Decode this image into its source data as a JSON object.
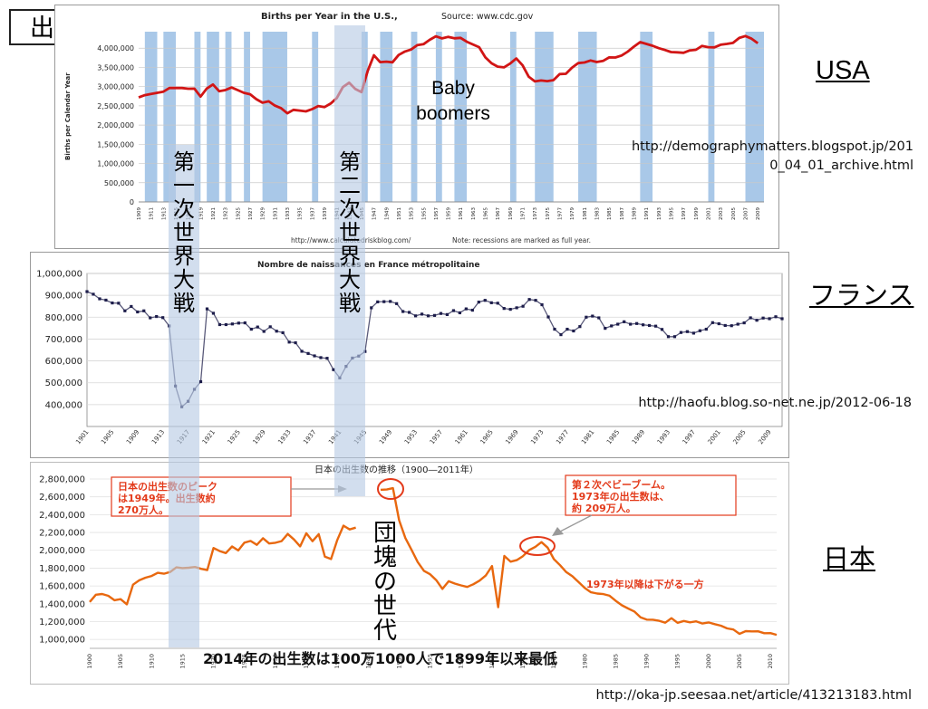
{
  "page": {
    "title": "出生数の推移",
    "wars": {
      "ww1": [
        "第",
        "一",
        "次",
        "世",
        "界",
        "大",
        "戦"
      ],
      "ww2": [
        "第",
        "二",
        "次",
        "世",
        "界",
        "大",
        "戦"
      ]
    },
    "countries": {
      "usa": "USA",
      "france": "フランス",
      "japan": "日本"
    },
    "sources": {
      "usa_line1": "http://demographymatters.blogspot.jp/201",
      "usa_line2": "0_04_01_archive.html",
      "france": "http://haofu.blog.so-net.ne.jp/2012-06-18",
      "japan": "http://oka-jp.seesaa.net/article/413213183.html"
    },
    "colors": {
      "usa_line": "#d11515",
      "france_line": "#1c1c4a",
      "japan_line": "#e8680f",
      "recession": "#a9c8e8",
      "annotation": "#e33a1a",
      "highlight": "#b6c9e4"
    }
  },
  "chart_data": [
    {
      "type": "line",
      "title": "Births per Year in the U.S.,",
      "subtitle": "Source: www.cdc.gov",
      "ylabel": "Births per Calendar Year",
      "footer_left": "http://www.calculatedriskblog.com/",
      "footer_right": "Note: recessions are marked as full year.",
      "ylim": [
        0,
        4500000
      ],
      "yticks": [
        0,
        500000,
        1000000,
        1500000,
        2000000,
        2500000,
        3000000,
        3500000,
        4000000
      ],
      "ytick_labels": [
        "0",
        "500,000",
        "1,000,000",
        "1,500,000",
        "2,000,000",
        "2,500,000",
        "3,000,000",
        "3,500,000",
        "4,000,000"
      ],
      "xlim": [
        1909,
        2010
      ],
      "xtick_labels": [
        "1909",
        "1911",
        "1913",
        "1915",
        "1917",
        "1919",
        "1921",
        "1923",
        "1925",
        "1927",
        "1929",
        "1931",
        "1933",
        "1935",
        "1937",
        "1939",
        "1941",
        "1943",
        "1945",
        "1947",
        "1949",
        "1951",
        "1953",
        "1955",
        "1957",
        "1959",
        "1961",
        "1963",
        "1965",
        "1967",
        "1969",
        "1971",
        "1973",
        "1975",
        "1977",
        "1979",
        "1981",
        "1983",
        "1985",
        "1987",
        "1989",
        "1991",
        "1993",
        "1995",
        "1997",
        "1999",
        "2001",
        "2003",
        "2005",
        "2007",
        "2009"
      ],
      "recessions": [
        [
          1910,
          1912
        ],
        [
          1913,
          1915
        ],
        [
          1918,
          1919
        ],
        [
          1920,
          1922
        ],
        [
          1923,
          1924
        ],
        [
          1926,
          1927
        ],
        [
          1929,
          1933
        ],
        [
          1937,
          1938
        ],
        [
          1945,
          1946
        ],
        [
          1948,
          1950
        ],
        [
          1953,
          1954
        ],
        [
          1957,
          1958
        ],
        [
          1960,
          1962
        ],
        [
          1969,
          1970
        ],
        [
          1973,
          1976
        ],
        [
          1980,
          1983
        ],
        [
          1990,
          1992
        ],
        [
          2001,
          2002
        ],
        [
          2007,
          2010
        ]
      ],
      "annotation": [
        "Baby",
        "boomers"
      ],
      "series": [
        {
          "name": "Births",
          "x": [
            1909,
            1910,
            1911,
            1912,
            1913,
            1914,
            1915,
            1916,
            1917,
            1918,
            1919,
            1920,
            1921,
            1922,
            1923,
            1924,
            1925,
            1926,
            1927,
            1928,
            1929,
            1930,
            1931,
            1932,
            1933,
            1934,
            1935,
            1936,
            1937,
            1938,
            1939,
            1940,
            1941,
            1942,
            1943,
            1944,
            1945,
            1946,
            1947,
            1948,
            1949,
            1950,
            1951,
            1952,
            1953,
            1954,
            1955,
            1956,
            1957,
            1958,
            1959,
            1960,
            1961,
            1962,
            1963,
            1964,
            1965,
            1966,
            1967,
            1968,
            1969,
            1970,
            1971,
            1972,
            1973,
            1974,
            1975,
            1976,
            1977,
            1978,
            1979,
            1980,
            1981,
            1982,
            1983,
            1984,
            1985,
            1986,
            1987,
            1988,
            1989,
            1990,
            1991,
            1992,
            1993,
            1994,
            1995,
            1996,
            1997,
            1998,
            1999,
            2000,
            2001,
            2002,
            2003,
            2004,
            2005,
            2006,
            2007,
            2008,
            2009
          ],
          "values": [
            2718000,
            2777000,
            2809000,
            2840000,
            2869000,
            2966000,
            2965000,
            2964000,
            2944000,
            2948000,
            2740000,
            2950000,
            3055000,
            2882000,
            2910000,
            2979000,
            2909000,
            2839000,
            2802000,
            2674000,
            2582000,
            2618000,
            2506000,
            2440000,
            2307000,
            2396000,
            2377000,
            2355000,
            2413000,
            2496000,
            2466000,
            2559000,
            2703000,
            2989000,
            3104000,
            2939000,
            2858000,
            3411000,
            3817000,
            3637000,
            3649000,
            3632000,
            3823000,
            3913000,
            3965000,
            4078000,
            4104000,
            4218000,
            4308000,
            4255000,
            4295000,
            4258000,
            4268000,
            4167000,
            4098000,
            4027000,
            3760000,
            3606000,
            3521000,
            3502000,
            3600000,
            3731000,
            3556000,
            3258000,
            3137000,
            3160000,
            3144000,
            3168000,
            3327000,
            3333000,
            3494000,
            3612000,
            3629000,
            3681000,
            3639000,
            3669000,
            3761000,
            3757000,
            3809000,
            3910000,
            4041000,
            4158000,
            4111000,
            4065000,
            4000000,
            3953000,
            3900000,
            3891000,
            3881000,
            3942000,
            3959000,
            4059000,
            4026000,
            4022000,
            4090000,
            4112000,
            4138000,
            4266000,
            4316000,
            4248000,
            4131000
          ]
        }
      ]
    },
    {
      "type": "line",
      "title": "Nombre de naissances en France métropolitaine",
      "ylim": [
        300000,
        1000000
      ],
      "yticks": [
        400000,
        500000,
        600000,
        700000,
        800000,
        900000,
        1000000
      ],
      "ytick_labels": [
        "400,000",
        "500,000",
        "600,000",
        "700,000",
        "800,000",
        "900,000",
        "1,000,000"
      ],
      "xlim": [
        1901,
        2011
      ],
      "xtick_labels": [
        "1901",
        "1905",
        "1909",
        "1913",
        "1917",
        "1921",
        "1925",
        "1929",
        "1933",
        "1937",
        "1941",
        "1945",
        "1949",
        "1953",
        "1957",
        "1961",
        "1965",
        "1969",
        "1973",
        "1977",
        "1981",
        "1985",
        "1989",
        "1993",
        "1997",
        "2001",
        "2005",
        "2009"
      ],
      "series": [
        {
          "name": "Naissances",
          "x": [
            1901,
            1902,
            1903,
            1904,
            1905,
            1906,
            1907,
            1908,
            1909,
            1910,
            1911,
            1912,
            1913,
            1914,
            1915,
            1916,
            1917,
            1918,
            1919,
            1920,
            1921,
            1922,
            1923,
            1924,
            1925,
            1926,
            1927,
            1928,
            1929,
            1930,
            1931,
            1932,
            1933,
            1934,
            1935,
            1936,
            1937,
            1938,
            1939,
            1940,
            1941,
            1942,
            1943,
            1944,
            1945,
            1946,
            1947,
            1948,
            1949,
            1950,
            1951,
            1952,
            1953,
            1954,
            1955,
            1956,
            1957,
            1958,
            1959,
            1960,
            1961,
            1962,
            1963,
            1964,
            1965,
            1966,
            1967,
            1968,
            1969,
            1970,
            1971,
            1972,
            1973,
            1974,
            1975,
            1976,
            1977,
            1978,
            1979,
            1980,
            1981,
            1982,
            1983,
            1984,
            1985,
            1986,
            1987,
            1988,
            1989,
            1990,
            1991,
            1992,
            1993,
            1994,
            1995,
            1996,
            1997,
            1998,
            1999,
            2000,
            2001,
            2002,
            2003,
            2004,
            2005,
            2006,
            2007,
            2008,
            2009,
            2010,
            2011
          ],
          "values": [
            917000,
            905000,
            884000,
            878000,
            865000,
            864000,
            829000,
            849000,
            824000,
            829000,
            797000,
            803000,
            798000,
            760000,
            485000,
            390000,
            415000,
            470000,
            505000,
            838000,
            818000,
            766000,
            766000,
            769000,
            773000,
            774000,
            745000,
            755000,
            735000,
            756000,
            736000,
            729000,
            686000,
            683000,
            644000,
            634000,
            623000,
            615000,
            612000,
            560000,
            522000,
            575000,
            613000,
            622000,
            643000,
            843000,
            870000,
            871000,
            872000,
            862000,
            826000,
            822000,
            806000,
            814000,
            806000,
            808000,
            817000,
            812000,
            830000,
            820000,
            838000,
            832000,
            869000,
            877000,
            866000,
            864000,
            840000,
            836000,
            843000,
            850000,
            881000,
            877000,
            857000,
            801000,
            745000,
            720000,
            745000,
            737000,
            757000,
            800000,
            805000,
            797000,
            749000,
            760000,
            768000,
            779000,
            768000,
            771000,
            765000,
            762000,
            759000,
            744000,
            711000,
            711000,
            730000,
            734000,
            727000,
            738000,
            745000,
            775000,
            770000,
            762000,
            761000,
            768000,
            774000,
            797000,
            786000,
            796000,
            793000,
            802000,
            793000
          ]
        }
      ]
    },
    {
      "type": "line",
      "title": "日本の出生数の推移（1900―2011年）",
      "ylim": [
        900000,
        2800000
      ],
      "yticks": [
        1000000,
        1200000,
        1400000,
        1600000,
        1800000,
        2000000,
        2200000,
        2400000,
        2600000,
        2800000
      ],
      "ytick_labels": [
        "1,000,000",
        "1,200,000",
        "1,400,000",
        "1,600,000",
        "1,800,000",
        "2,000,000",
        "2,200,000",
        "2,400,000",
        "2,600,000",
        "2,800,000"
      ],
      "xlim": [
        1900,
        2011
      ],
      "xtick_labels": [
        "1900",
        "1905",
        "1910",
        "1915",
        "1920",
        "1925",
        "1930",
        "1935",
        "1940",
        "1945",
        "1950",
        "1955",
        "1960",
        "1965",
        "1970",
        "1975",
        "1980",
        "1985",
        "1990",
        "1995",
        "2000",
        "2005",
        "2010"
      ],
      "note_peak": [
        "日本の出生数のピーク",
        "は1949年。出生数約",
        "270万人。"
      ],
      "note_second": [
        "第２次ベビーブーム。",
        "1973年の出生数は、",
        "約 209万人。"
      ],
      "note_decline": "1973年以降は下がる一方",
      "dankai": [
        "団",
        "塊",
        "の",
        "世",
        "代"
      ],
      "bottom_caption": "2014年の出生数は100万1000人で1899年以来最低",
      "series": [
        {
          "name": "出生数",
          "x": [
            1900,
            1901,
            1902,
            1903,
            1904,
            1905,
            1906,
            1907,
            1908,
            1909,
            1910,
            1911,
            1912,
            1913,
            1914,
            1915,
            1916,
            1917,
            1918,
            1919,
            1920,
            1921,
            1922,
            1923,
            1924,
            1925,
            1926,
            1927,
            1928,
            1929,
            1930,
            1931,
            1932,
            1933,
            1934,
            1935,
            1936,
            1937,
            1938,
            1939,
            1940,
            1941,
            1942,
            1943,
            null,
            1947,
            1948,
            1949,
            1950,
            1951,
            1952,
            1953,
            1954,
            1955,
            1956,
            1957,
            1958,
            1959,
            1960,
            1961,
            1962,
            1963,
            1964,
            1965,
            1966,
            1967,
            1968,
            1969,
            1970,
            1971,
            1972,
            1973,
            1974,
            1975,
            1976,
            1977,
            1978,
            1979,
            1980,
            1981,
            1982,
            1983,
            1984,
            1985,
            1986,
            1987,
            1988,
            1989,
            1990,
            1991,
            1992,
            1993,
            1994,
            1995,
            1996,
            1997,
            1998,
            1999,
            2000,
            2001,
            2002,
            2003,
            2004,
            2005,
            2006,
            2007,
            2008,
            2009,
            2010,
            2011
          ],
          "values": [
            1420000,
            1501000,
            1510000,
            1489000,
            1440000,
            1452000,
            1394000,
            1614000,
            1663000,
            1693000,
            1712000,
            1747000,
            1737000,
            1757000,
            1808000,
            1800000,
            1804000,
            1812000,
            1792000,
            1778000,
            2026000,
            1991000,
            1969000,
            2043000,
            1998000,
            2086000,
            2105000,
            2061000,
            2136000,
            2077000,
            2085000,
            2103000,
            2183000,
            2121000,
            2044000,
            2191000,
            2102000,
            2181000,
            1928000,
            1902000,
            2116000,
            2277000,
            2234000,
            2254000,
            null,
            2679000,
            2682000,
            2697000,
            2338000,
            2138000,
            2005000,
            1868000,
            1770000,
            1731000,
            1665000,
            1567000,
            1653000,
            1626000,
            1606000,
            1589000,
            1619000,
            1660000,
            1717000,
            1824000,
            1361000,
            1936000,
            1872000,
            1890000,
            1934000,
            2001000,
            2039000,
            2092000,
            2030000,
            1901000,
            1833000,
            1755000,
            1709000,
            1643000,
            1577000,
            1529000,
            1515000,
            1509000,
            1490000,
            1432000,
            1383000,
            1347000,
            1314000,
            1247000,
            1222000,
            1221000,
            1209000,
            1188000,
            1238000,
            1187000,
            1207000,
            1192000,
            1203000,
            1178000,
            1191000,
            1171000,
            1154000,
            1124000,
            1111000,
            1063000,
            1093000,
            1090000,
            1091000,
            1070000,
            1071000,
            1051000
          ]
        }
      ]
    }
  ]
}
